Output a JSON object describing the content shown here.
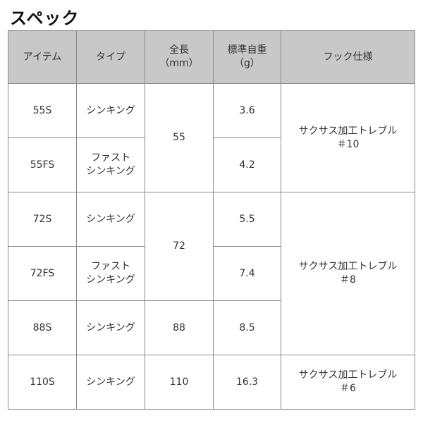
{
  "title": "スペック",
  "headers": [
    "アイテム",
    "タイプ",
    "全長\n（mm）",
    "標準自重\n（g）",
    "フック仕様"
  ],
  "rows": [
    {
      "item": "55S",
      "type": "シンキング",
      "length": "55",
      "weight": "3.6",
      "hook": "サクサス加工トレブル\n＃10"
    },
    {
      "item": "55FS",
      "type": "ファスト\nシンキング",
      "weight": "4.2"
    },
    {
      "item": "72S",
      "type": "シンキング",
      "length": "72",
      "weight": "5.5",
      "hook": "サクサス加工トレブル\n＃8"
    },
    {
      "item": "72FS",
      "type": "ファスト\nシンキング",
      "weight": "7.4"
    },
    {
      "item": "88S",
      "type": "シンキング",
      "length": "88",
      "weight": "8.5"
    },
    {
      "item": "110S",
      "type": "シンキング",
      "length": "110",
      "weight": "16.3",
      "hook": "サクサス加工トレブル\n＃6"
    }
  ],
  "colors": {
    "header_bg": "#c8c8c8",
    "border": "#8a8a8a"
  }
}
